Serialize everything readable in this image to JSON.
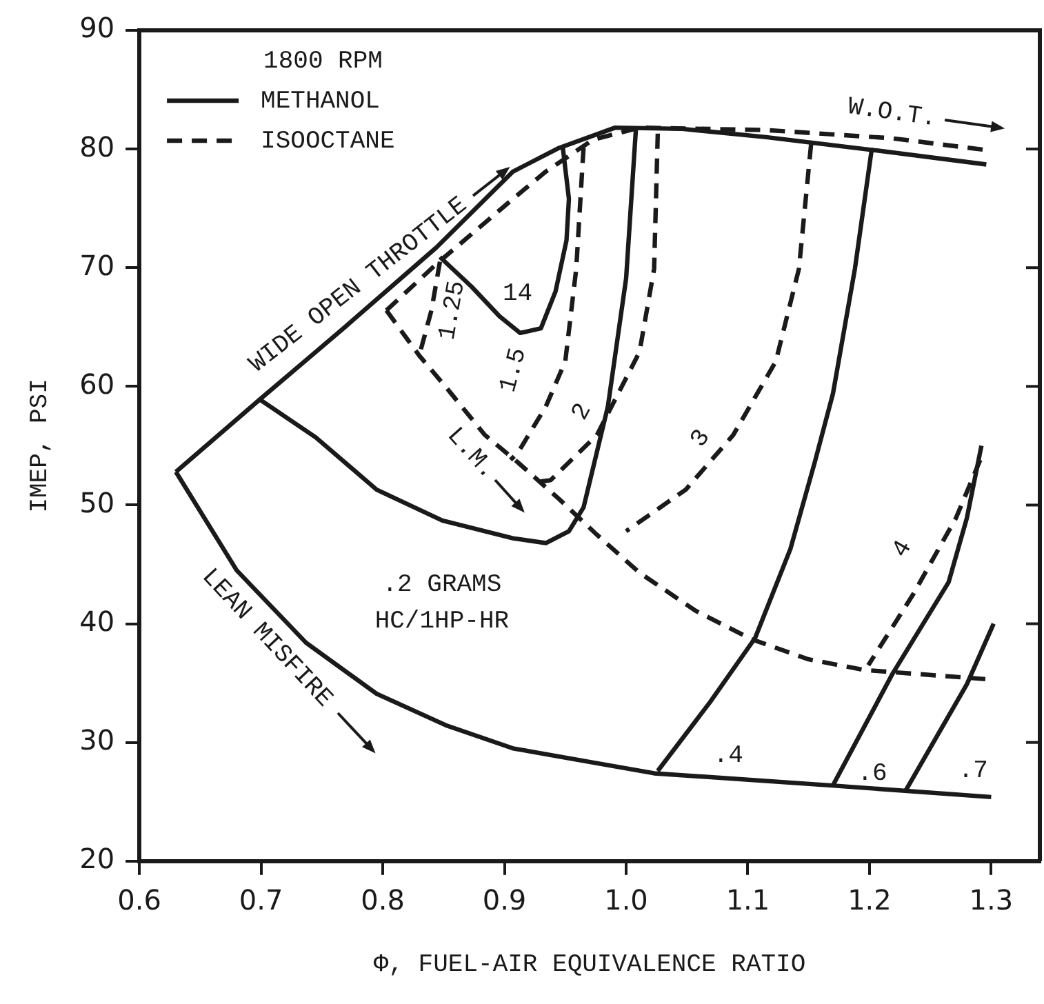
{
  "chart_data": {
    "type": "line",
    "xlabel": "Φ, FUEL-AIR EQUIVALENCE RATIO",
    "ylabel": "IMEP, PSI",
    "legend_title": "1800 RPM",
    "legend": "top left",
    "grid": false,
    "xlim": [
      0.6,
      1.34
    ],
    "ylim": [
      20,
      90
    ],
    "xticks": [
      {
        "value": 0.6,
        "label": "0.6"
      },
      {
        "value": 0.7,
        "label": "0.7"
      },
      {
        "value": 0.8,
        "label": "0.8"
      },
      {
        "value": 0.9,
        "label": "0.9"
      },
      {
        "value": 1.0,
        "label": "1.0"
      },
      {
        "value": 1.1,
        "label": "1.1"
      },
      {
        "value": 1.2,
        "label": "1.2"
      },
      {
        "value": 1.3,
        "label": "1.3"
      }
    ],
    "yticks": [
      20,
      30,
      40,
      50,
      60,
      70,
      80,
      90
    ],
    "series": [
      {
        "name": "METHANOL",
        "color": "#1a1a1a",
        "line_style": "solid",
        "x": [
          0.63,
          0.699,
          0.769,
          0.844,
          0.907,
          0.945,
          0.991,
          1.046,
          1.115,
          1.204,
          1.296
        ],
        "values": [
          52.8,
          58.9,
          65.0,
          71.7,
          78.1,
          80.1,
          81.8,
          81.7,
          81.0,
          79.9,
          78.7
        ]
      },
      {
        "color": "#1a1a1a",
        "line_style": "solid",
        "x": [
          0.63,
          0.68,
          0.737,
          0.795,
          0.853,
          0.907,
          0.973,
          1.023,
          1.165,
          1.3
        ],
        "values": [
          52.8,
          44.5,
          38.4,
          34.1,
          31.4,
          29.5,
          28.3,
          27.4,
          26.4,
          25.4
        ]
      },
      {
        "color": "#1a1a1a",
        "line_style": "solid",
        "x": [
          0.699,
          0.745,
          0.795,
          0.849,
          0.907,
          0.934,
          0.953,
          0.965,
          0.985,
          1.0,
          1.008
        ],
        "values": [
          58.9,
          55.7,
          51.3,
          48.7,
          47.2,
          46.8,
          47.8,
          49.8,
          58.3,
          69.1,
          81.6
        ]
      },
      {
        "color": "#1a1a1a",
        "line_style": "solid",
        "x": [
          0.847,
          0.873,
          0.896,
          0.913,
          0.93,
          0.942,
          0.951,
          0.953,
          0.948
        ],
        "values": [
          70.9,
          68.4,
          65.9,
          64.5,
          64.9,
          68.0,
          72.3,
          75.8,
          80.1
        ]
      },
      {
        "color": "#1a1a1a",
        "line_style": "solid",
        "x": [
          1.026,
          1.069,
          1.106,
          1.135,
          1.155,
          1.17,
          1.188,
          1.202
        ],
        "values": [
          27.6,
          33.4,
          38.8,
          46.3,
          53.6,
          59.4,
          69.9,
          80.1
        ]
      },
      {
        "color": "#1a1a1a",
        "line_style": "solid",
        "x": [
          1.17,
          1.219,
          1.265,
          1.28,
          1.292
        ],
        "values": [
          26.4,
          35.8,
          43.5,
          48.9,
          55.0
        ]
      },
      {
        "color": "#1a1a1a",
        "line_style": "solid",
        "x": [
          1.23,
          1.28,
          1.302
        ],
        "values": [
          26.0,
          34.9,
          40.0
        ]
      },
      {
        "name": "ISOOCTANE",
        "color": "#1a1a1a",
        "line_style": "dashed",
        "x": [
          0.803,
          0.844,
          0.907,
          0.934,
          0.973,
          1.011,
          1.115,
          1.219,
          1.297
        ],
        "values": [
          66.4,
          70.3,
          75.8,
          78.1,
          80.8,
          81.8,
          81.6,
          80.9,
          79.9
        ]
      },
      {
        "color": "#1a1a1a",
        "line_style": "dashed",
        "x": [
          0.803,
          0.83,
          0.853,
          0.884,
          0.911,
          0.945,
          0.976,
          1.011,
          1.057,
          1.103,
          1.15,
          1.196,
          1.3
        ],
        "values": [
          66.4,
          62.6,
          59.8,
          55.9,
          53.6,
          50.5,
          47.5,
          44.3,
          41.1,
          38.7,
          37.0,
          36.1,
          35.3
        ]
      },
      {
        "color": "#1a1a1a",
        "line_style": "dashed",
        "x": [
          0.847,
          0.84,
          0.83
        ],
        "values": [
          70.5,
          66.4,
          62.6
        ]
      },
      {
        "color": "#1a1a1a",
        "line_style": "dashed",
        "x": [
          0.965,
          0.959,
          0.95,
          0.934,
          0.911,
          0.905
        ],
        "values": [
          80.1,
          69.9,
          62.1,
          58.3,
          54.4,
          53.8
        ]
      },
      {
        "color": "#1a1a1a",
        "line_style": "dashed",
        "x": [
          1.026,
          1.023,
          1.011,
          0.976,
          0.938,
          0.924
        ],
        "values": [
          81.3,
          69.9,
          62.9,
          55.9,
          52.1,
          51.9
        ]
      },
      {
        "color": "#1a1a1a",
        "line_style": "dashed",
        "x": [
          1.152,
          1.142,
          1.123,
          1.088,
          1.049,
          1.0
        ],
        "values": [
          80.4,
          69.9,
          62.1,
          55.9,
          51.3,
          47.8
        ]
      },
      {
        "color": "#1a1a1a",
        "line_style": "dashed",
        "x": [
          1.291,
          1.271,
          1.236,
          1.199
        ],
        "values": [
          53.8,
          48.9,
          42.5,
          36.5
        ]
      }
    ],
    "annotations": [
      "WIDE OPEN THROTTLE",
      "LEAN MISFIRE",
      "W.O.T.",
      "L.M.",
      "14",
      "1.25",
      "1.5",
      "2",
      "3",
      ".2 GRAMS",
      "HC/1HP-HR",
      ".4",
      ".6",
      ".7",
      "4"
    ]
  }
}
